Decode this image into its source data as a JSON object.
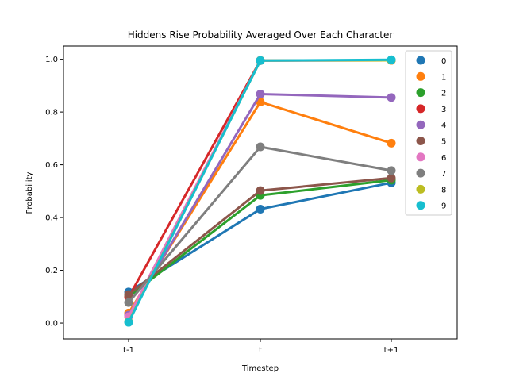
{
  "chart_data": {
    "type": "line",
    "title": "Hiddens Rise Probability Averaged Over Each Character",
    "xlabel": "Timestep",
    "ylabel": "Probability",
    "categories": [
      "t-1",
      "t",
      "t+1"
    ],
    "ylim": [
      -0.06,
      1.05
    ],
    "yticks": [
      "0.0",
      "0.2",
      "0.4",
      "0.6",
      "0.8",
      "1.0"
    ],
    "legend_position": "upper-right",
    "grid": false,
    "series": [
      {
        "name": "0",
        "color": "#1f77b4",
        "values": [
          0.118,
          0.432,
          0.532
        ]
      },
      {
        "name": "1",
        "color": "#ff7f0e",
        "values": [
          0.038,
          0.838,
          0.682
        ]
      },
      {
        "name": "2",
        "color": "#2ca02c",
        "values": [
          0.1,
          0.484,
          0.542
        ]
      },
      {
        "name": "3",
        "color": "#d62728",
        "values": [
          0.098,
          0.995,
          0.996
        ]
      },
      {
        "name": "4",
        "color": "#9467bd",
        "values": [
          0.03,
          0.868,
          0.855
        ]
      },
      {
        "name": "5",
        "color": "#8c564b",
        "values": [
          0.108,
          0.502,
          0.55
        ]
      },
      {
        "name": "6",
        "color": "#e377c2",
        "values": [
          0.024,
          0.995,
          0.996
        ]
      },
      {
        "name": "7",
        "color": "#7f7f7f",
        "values": [
          0.078,
          0.668,
          0.578
        ]
      },
      {
        "name": "8",
        "color": "#bcbd22",
        "values": [
          0.005,
          0.995,
          0.996
        ]
      },
      {
        "name": "9",
        "color": "#17becf",
        "values": [
          0.003,
          0.995,
          0.998
        ]
      }
    ]
  }
}
